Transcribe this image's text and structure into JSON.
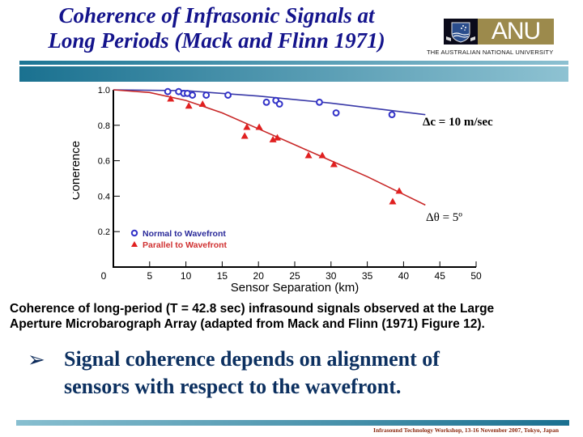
{
  "slide": {
    "title_line1": "Coherence of Infrasonic Signals at",
    "title_line2": "Long Periods (Mack and Flinn 1971)",
    "logo": {
      "wordmark": "ANU",
      "subtitle": "THE AUSTRALIAN NATIONAL UNIVERSITY",
      "crest_icon": "university-crest-icon"
    },
    "caption_line1": "Coherence of long-period (T = 42.8 sec) infrasound signals observed at the Large",
    "caption_line2": "Aperture Microbarograph Array (adapted from Mack and Flinn (1971) Figure 12).",
    "bullet": {
      "icon": "arrowhead-bullet-icon",
      "glyph": "➢",
      "line1": "Signal coherence depends on alignment of",
      "line2": "sensors with respect to the wavefront."
    },
    "footer": "Infrasound Technology Workshop, 13-16 November 2007, Tokyo, Japan",
    "colors": {
      "title": "#14148c",
      "normal_series": "#3232c8",
      "parallel_series": "#e02020",
      "rule_dark": "#1a7190",
      "rule_light": "#8ec2d2",
      "logo_gold": "#9c8a4c",
      "footer": "#8b2a10"
    }
  },
  "chart_data": {
    "type": "scatter",
    "title": "",
    "xlabel": "Sensor Separation (km)",
    "ylabel": "Coherence",
    "xlim": [
      0,
      50
    ],
    "ylim": [
      0,
      1.0
    ],
    "xticks": [
      "0",
      "5",
      "10",
      "15",
      "20",
      "25",
      "30",
      "35",
      "40",
      "45",
      "50"
    ],
    "yticks": [
      "0.2",
      "0.4",
      "0.6",
      "0.8",
      "1.0"
    ],
    "grid": false,
    "legend_position": "lower-left",
    "legend": [
      "Normal to Wavefront",
      "Parallel to Wavefront"
    ],
    "annotations": [
      "Δc = 10 m/sec",
      "Δθ = 5º"
    ],
    "series": [
      {
        "name": "Normal to Wavefront",
        "marker": "open-circle",
        "color": "#3232c8",
        "points": [
          [
            7.5,
            0.99
          ],
          [
            9.0,
            0.99
          ],
          [
            9.7,
            0.98
          ],
          [
            10.2,
            0.98
          ],
          [
            10.9,
            0.97
          ],
          [
            12.8,
            0.97
          ],
          [
            15.8,
            0.97
          ],
          [
            21.1,
            0.93
          ],
          [
            22.4,
            0.94
          ],
          [
            22.9,
            0.92
          ],
          [
            28.4,
            0.93
          ],
          [
            30.7,
            0.87
          ],
          [
            38.4,
            0.86
          ]
        ],
        "fit_line": [
          [
            0,
            1.0
          ],
          [
            10,
            0.995
          ],
          [
            20,
            0.965
          ],
          [
            30,
            0.925
          ],
          [
            40,
            0.875
          ],
          [
            43,
            0.86
          ]
        ]
      },
      {
        "name": "Parallel to Wavefront",
        "marker": "filled-triangle",
        "color": "#e02020",
        "points": [
          [
            7.9,
            0.95
          ],
          [
            10.4,
            0.91
          ],
          [
            12.3,
            0.92
          ],
          [
            18.4,
            0.79
          ],
          [
            18.1,
            0.74
          ],
          [
            20.1,
            0.79
          ],
          [
            22.0,
            0.72
          ],
          [
            22.6,
            0.73
          ],
          [
            26.9,
            0.63
          ],
          [
            28.8,
            0.63
          ],
          [
            30.4,
            0.58
          ],
          [
            39.4,
            0.43
          ],
          [
            38.5,
            0.37
          ]
        ],
        "fit_line": [
          [
            0,
            1.0
          ],
          [
            5,
            0.985
          ],
          [
            10,
            0.94
          ],
          [
            15,
            0.87
          ],
          [
            20,
            0.78
          ],
          [
            25,
            0.69
          ],
          [
            30,
            0.6
          ],
          [
            35,
            0.51
          ],
          [
            40,
            0.41
          ],
          [
            43,
            0.35
          ]
        ]
      }
    ]
  }
}
